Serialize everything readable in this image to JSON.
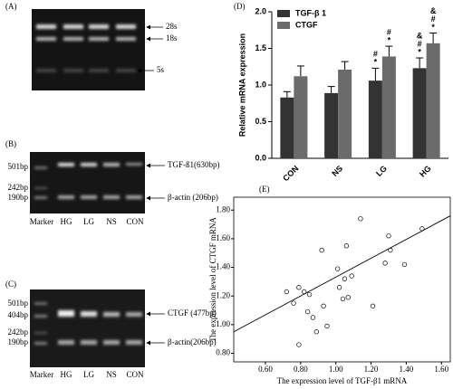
{
  "panels": {
    "A": {
      "label": "(A)",
      "right_labels": [
        "28s",
        "18s",
        "5s"
      ]
    },
    "B": {
      "label": "(B)",
      "left_labels": [
        "501bp",
        "242bp",
        "190bp"
      ],
      "lane_labels": [
        "Marker",
        "HG",
        "LG",
        "NS",
        "CON"
      ],
      "right_labels": [
        "TGF-ß1(630bp)",
        "β-actin (206bp)"
      ]
    },
    "C": {
      "label": "(C)",
      "left_labels": [
        "501bp",
        "404bp",
        "242bp",
        "190bp"
      ],
      "lane_labels": [
        "Marker",
        "HG",
        "LG",
        "NS",
        "CON"
      ],
      "right_labels": [
        "CTGF (477bp)",
        "β-actin(206bp)"
      ]
    },
    "D": {
      "label": "(D)"
    },
    "E": {
      "label": "(E)"
    }
  },
  "chart_data": [
    {
      "type": "bar",
      "ylabel": "Relative mRNA expression",
      "categories": [
        "CON",
        "NS",
        "LG",
        "HG"
      ],
      "series": [
        {
          "name": "TGF-β 1",
          "color": "#333333",
          "values": [
            0.83,
            0.89,
            1.06,
            1.23
          ],
          "errors": [
            0.08,
            0.09,
            0.17,
            0.14
          ],
          "annotations": [
            null,
            null,
            [
              "#",
              "*"
            ],
            [
              "&",
              "#",
              "*"
            ]
          ]
        },
        {
          "name": "CTGF",
          "color": "#6b6b6b",
          "values": [
            1.12,
            1.21,
            1.39,
            1.57
          ],
          "errors": [
            0.14,
            0.11,
            0.14,
            0.14
          ],
          "annotations": [
            null,
            null,
            [
              "#",
              "*"
            ],
            [
              "&",
              "#",
              "*"
            ]
          ]
        }
      ],
      "ylim": [
        0,
        2
      ],
      "yticks": [
        {
          "value": 0,
          "label": "0.0"
        },
        {
          "value": 0.5,
          "label": "0.5"
        },
        {
          "value": 1,
          "label": "1.0"
        },
        {
          "value": 1.5,
          "label": "1.5"
        },
        {
          "value": 2,
          "label": "2.0"
        }
      ],
      "legend": "upper left"
    },
    {
      "type": "scatter",
      "xlabel": "The expression level of TGF-β1 mRNA",
      "ylabel": "The expression level of CTGF mRNA",
      "x": [
        0.72,
        0.76,
        0.79,
        0.82,
        0.85,
        0.84,
        0.87,
        0.79,
        0.89,
        0.92,
        0.93,
        0.95,
        1.01,
        1.02,
        1.05,
        1.06,
        1.07,
        1.09,
        1.04,
        1.14,
        1.21,
        1.28,
        1.3,
        1.31,
        1.39,
        1.49
      ],
      "y": [
        1.23,
        1.15,
        1.26,
        1.23,
        1.21,
        1.09,
        1.05,
        0.86,
        0.95,
        1.52,
        1.13,
        0.99,
        1.39,
        1.26,
        1.32,
        1.55,
        1.19,
        1.34,
        1.18,
        1.74,
        1.13,
        1.43,
        1.62,
        1.52,
        1.42,
        1.67
      ],
      "trendline": {
        "x": [
          0.42,
          1.65
        ],
        "y": [
          0.95,
          1.76
        ]
      },
      "xlim": [
        0.42,
        1.65
      ],
      "ylim": [
        0.74,
        1.89
      ],
      "xticks": [
        {
          "value": 0.6,
          "label": "0.60"
        },
        {
          "value": 0.8,
          "label": "0.80"
        },
        {
          "value": 1.0,
          "label": "1.00"
        },
        {
          "value": 1.2,
          "label": "1.20"
        },
        {
          "value": 1.4,
          "label": "1.40"
        },
        {
          "value": 1.6,
          "label": "1.60"
        }
      ],
      "yticks": [
        {
          "value": 0.8,
          "label": "0.80"
        },
        {
          "value": 1.0,
          "label": "1.00"
        },
        {
          "value": 1.2,
          "label": "1.20"
        },
        {
          "value": 1.4,
          "label": "1.40"
        },
        {
          "value": 1.6,
          "label": "1.60"
        },
        {
          "value": 1.8,
          "label": "1.80"
        }
      ]
    }
  ]
}
